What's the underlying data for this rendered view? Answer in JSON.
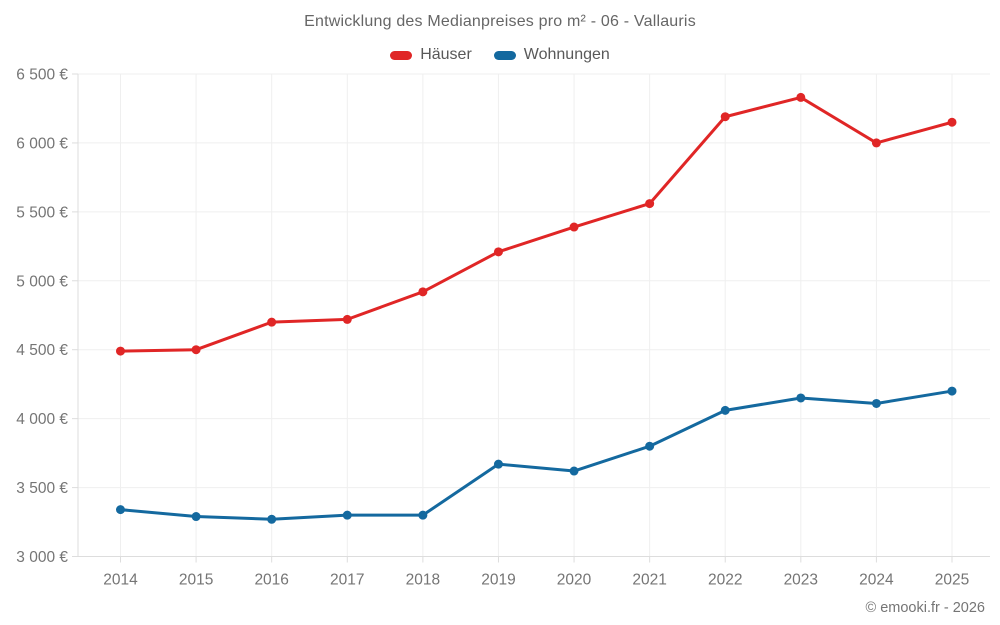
{
  "title": "Entwicklung des Medianpreises pro m² - 06 - Vallauris",
  "footer": "© emooki.fr - 2026",
  "colors": {
    "haeuser": "#e02626",
    "wohnungen": "#14699f",
    "grid": "#efefef",
    "axis": "#dddddd",
    "tick_text": "#757575",
    "title_text": "#666666"
  },
  "chart_data": {
    "type": "line",
    "title": "Entwicklung des Medianpreises pro m² - 06 - Vallauris",
    "categories": [
      "2014",
      "2015",
      "2016",
      "2017",
      "2018",
      "2019",
      "2020",
      "2021",
      "2022",
      "2023",
      "2024",
      "2025"
    ],
    "series": [
      {
        "name": "Häuser",
        "color": "#e02626",
        "values": [
          4490,
          4500,
          4700,
          4720,
          4920,
          5210,
          5390,
          5560,
          6190,
          6330,
          6000,
          6150
        ]
      },
      {
        "name": "Wohnungen",
        "color": "#14699f",
        "values": [
          3340,
          3290,
          3270,
          3300,
          3300,
          3670,
          3620,
          3800,
          4060,
          4150,
          4110,
          4200
        ]
      }
    ],
    "xlabel": "",
    "ylabel": "",
    "ylim": [
      3000,
      6500
    ],
    "y_tick_step": 500,
    "y_tick_labels": [
      "3 000 €",
      "3 500 €",
      "4 000 €",
      "4 500 €",
      "5 000 €",
      "5 500 €",
      "6 000 €",
      "6 500 €"
    ],
    "grid": true,
    "legend_position": "top",
    "marker": "circle"
  }
}
